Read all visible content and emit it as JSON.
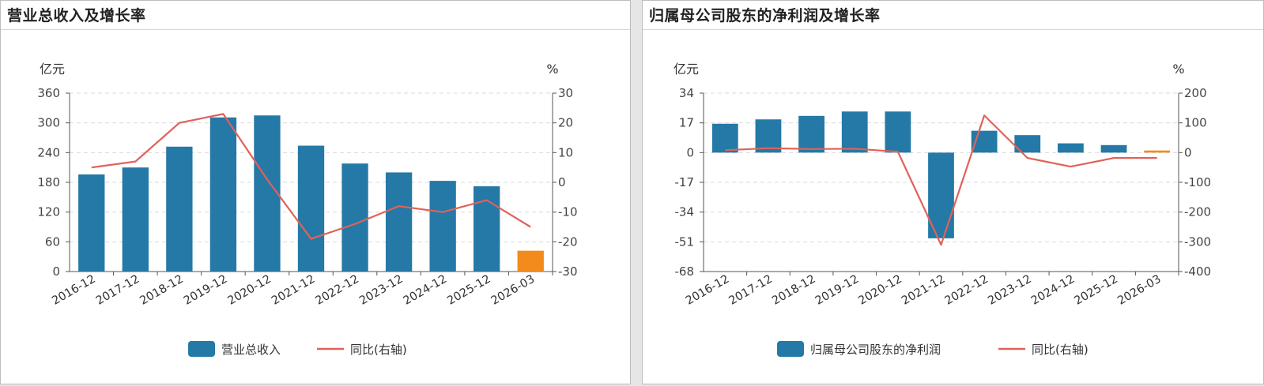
{
  "colors": {
    "bar": "#2479a6",
    "bar_highlight": "#f28a1c",
    "line": "#e0625a",
    "grid": "#d9d9d9",
    "axis": "#555555"
  },
  "chart_data": [
    {
      "type": "bar",
      "title": "营业总收入及增长率",
      "categories": [
        "2016-12",
        "2017-12",
        "2018-12",
        "2019-12",
        "2020-12",
        "2021-12",
        "2022-12",
        "2023-12",
        "2024-12",
        "2025-12",
        "2026-03"
      ],
      "series": [
        {
          "name": "营业总收入",
          "type": "bar",
          "axis": "left",
          "values": [
            196,
            210,
            252,
            311,
            315,
            254,
            218,
            200,
            183,
            172,
            42
          ],
          "highlight_index": 10
        },
        {
          "name": "同比(右轴)",
          "type": "line",
          "axis": "right",
          "values": [
            5,
            7,
            20,
            23,
            1,
            -19,
            -14,
            -8,
            -10,
            -6,
            -15
          ]
        }
      ],
      "y_left": {
        "unit": "亿元",
        "ticks": [
          0,
          60,
          120,
          180,
          240,
          300,
          360
        ],
        "lim": [
          0,
          360
        ]
      },
      "y_right": {
        "unit": "%",
        "ticks": [
          -30,
          -20,
          -10,
          0,
          10,
          20,
          30
        ],
        "lim": [
          -30,
          30
        ]
      },
      "grid": true,
      "legend": "bottom"
    },
    {
      "type": "bar",
      "title": "归属母公司股东的净利润及增长率",
      "categories": [
        "2016-12",
        "2017-12",
        "2018-12",
        "2019-12",
        "2020-12",
        "2021-12",
        "2022-12",
        "2023-12",
        "2024-12",
        "2025-12",
        "2026-03"
      ],
      "series": [
        {
          "name": "归属母公司股东的净利润",
          "type": "bar",
          "axis": "left",
          "values": [
            16.5,
            19,
            21,
            23.5,
            23.5,
            -49,
            12.5,
            10,
            5.3,
            4.3,
            1.2
          ],
          "highlight_index": 10
        },
        {
          "name": "同比(右轴)",
          "type": "line",
          "axis": "right",
          "values": [
            8,
            15,
            12,
            13,
            3,
            -310,
            125,
            -18,
            -47,
            -18,
            -18
          ]
        }
      ],
      "y_left": {
        "unit": "亿元",
        "ticks": [
          -68,
          -51,
          -34,
          -17,
          0,
          17,
          34
        ],
        "lim": [
          -68,
          34
        ]
      },
      "y_right": {
        "unit": "%",
        "ticks": [
          -400,
          -300,
          -200,
          -100,
          0,
          100,
          200
        ],
        "lim": [
          -400,
          200
        ]
      },
      "grid": true,
      "legend": "bottom"
    }
  ]
}
